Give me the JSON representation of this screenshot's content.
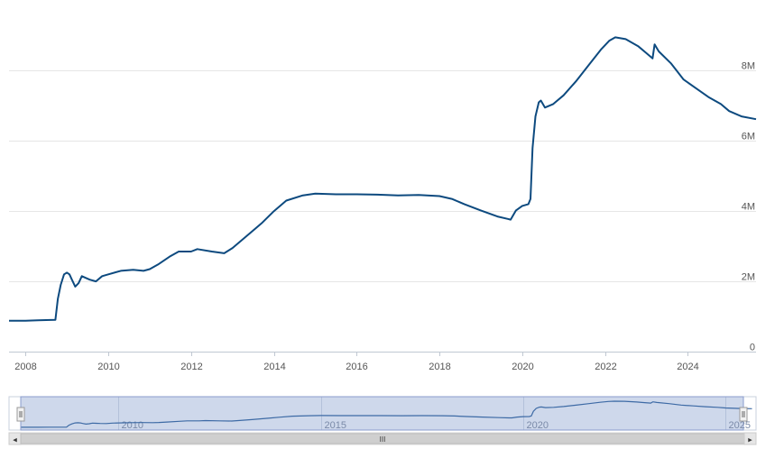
{
  "chart_data": {
    "type": "line",
    "title": "",
    "xlabel": "",
    "ylabel": "",
    "x_ticks": [
      "2008",
      "2010",
      "2012",
      "2014",
      "2016",
      "2018",
      "2020",
      "2022",
      "2024"
    ],
    "y_ticks": [
      "0",
      "2M",
      "4M",
      "6M",
      "8M"
    ],
    "xlim": [
      2007.6,
      2025.65
    ],
    "ylim": [
      0,
      9500000
    ],
    "grid": true,
    "legend": "none",
    "series": [
      {
        "color": "#0d4a7f",
        "points": [
          [
            2007.6,
            880000
          ],
          [
            2008.0,
            880000
          ],
          [
            2008.3,
            890000
          ],
          [
            2008.6,
            900000
          ],
          [
            2008.72,
            905000
          ],
          [
            2008.78,
            1500000
          ],
          [
            2008.85,
            1900000
          ],
          [
            2008.93,
            2200000
          ],
          [
            2009.0,
            2250000
          ],
          [
            2009.06,
            2200000
          ],
          [
            2009.12,
            2050000
          ],
          [
            2009.2,
            1850000
          ],
          [
            2009.28,
            1950000
          ],
          [
            2009.36,
            2150000
          ],
          [
            2009.45,
            2100000
          ],
          [
            2009.55,
            2050000
          ],
          [
            2009.7,
            2000000
          ],
          [
            2009.85,
            2150000
          ],
          [
            2010.0,
            2200000
          ],
          [
            2010.3,
            2300000
          ],
          [
            2010.6,
            2330000
          ],
          [
            2010.85,
            2300000
          ],
          [
            2011.0,
            2350000
          ],
          [
            2011.2,
            2480000
          ],
          [
            2011.5,
            2720000
          ],
          [
            2011.7,
            2850000
          ],
          [
            2012.0,
            2850000
          ],
          [
            2012.15,
            2920000
          ],
          [
            2012.5,
            2850000
          ],
          [
            2012.8,
            2800000
          ],
          [
            2013.0,
            2950000
          ],
          [
            2013.3,
            3250000
          ],
          [
            2013.7,
            3650000
          ],
          [
            2014.0,
            4000000
          ],
          [
            2014.3,
            4300000
          ],
          [
            2014.7,
            4450000
          ],
          [
            2015.0,
            4500000
          ],
          [
            2015.5,
            4480000
          ],
          [
            2016.0,
            4480000
          ],
          [
            2016.5,
            4470000
          ],
          [
            2017.0,
            4450000
          ],
          [
            2017.5,
            4460000
          ],
          [
            2018.0,
            4430000
          ],
          [
            2018.3,
            4350000
          ],
          [
            2018.6,
            4200000
          ],
          [
            2019.0,
            4020000
          ],
          [
            2019.4,
            3850000
          ],
          [
            2019.65,
            3780000
          ],
          [
            2019.72,
            3760000
          ],
          [
            2019.85,
            4020000
          ],
          [
            2020.0,
            4150000
          ],
          [
            2020.15,
            4200000
          ],
          [
            2020.2,
            4350000
          ],
          [
            2020.25,
            5800000
          ],
          [
            2020.32,
            6700000
          ],
          [
            2020.4,
            7100000
          ],
          [
            2020.45,
            7150000
          ],
          [
            2020.55,
            6950000
          ],
          [
            2020.75,
            7050000
          ],
          [
            2021.0,
            7300000
          ],
          [
            2021.3,
            7700000
          ],
          [
            2021.6,
            8150000
          ],
          [
            2021.9,
            8600000
          ],
          [
            2022.1,
            8850000
          ],
          [
            2022.25,
            8950000
          ],
          [
            2022.5,
            8900000
          ],
          [
            2022.8,
            8700000
          ],
          [
            2023.0,
            8500000
          ],
          [
            2023.15,
            8350000
          ],
          [
            2023.2,
            8750000
          ],
          [
            2023.3,
            8550000
          ],
          [
            2023.6,
            8200000
          ],
          [
            2023.9,
            7750000
          ],
          [
            2024.2,
            7500000
          ],
          [
            2024.5,
            7250000
          ],
          [
            2024.8,
            7050000
          ],
          [
            2025.0,
            6850000
          ],
          [
            2025.3,
            6700000
          ],
          [
            2025.65,
            6620000
          ]
        ]
      }
    ],
    "navigator": {
      "labels": [
        "2010",
        "2015",
        "2020",
        "2025"
      ],
      "xlim": [
        2007.3,
        2025.75
      ]
    }
  },
  "scrollbar": {
    "left_arrow": "◂",
    "right_arrow": "▸",
    "grip": "III"
  }
}
